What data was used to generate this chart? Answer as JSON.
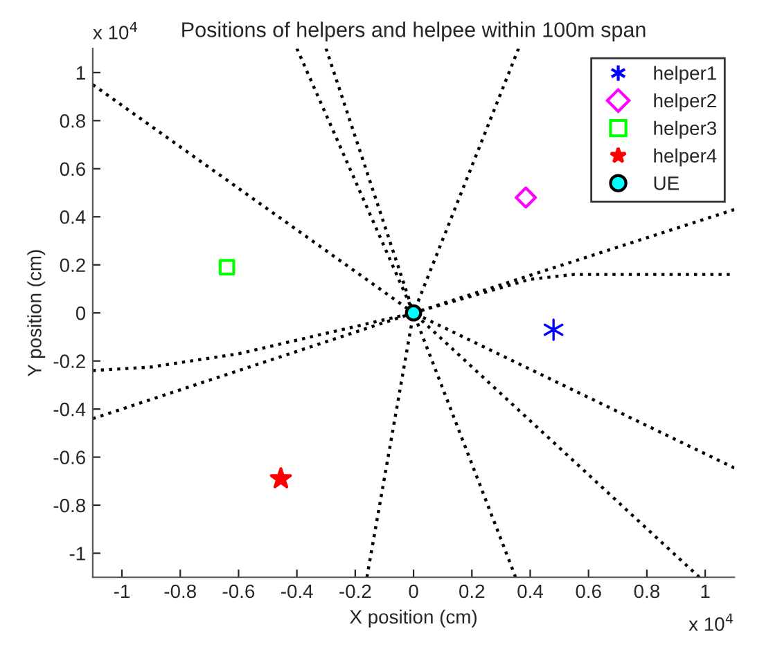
{
  "chart_data": {
    "type": "scatter",
    "title": "Positions of helpers and helpee within 100m span",
    "xlabel": "X position (cm)",
    "ylabel": "Y position (cm)",
    "annotations": [
      "x 10$^{4}$",
      "x 10$^{4}$"
    ],
    "xlim": [
      -1.1,
      1.1
    ],
    "ylim": [
      -1.1,
      1.1
    ],
    "xticks": [
      -1,
      -0.8,
      -0.6,
      -0.4,
      -0.2,
      0,
      0.2,
      0.4,
      0.6,
      0.8,
      1
    ],
    "yticks": [
      -1,
      -0.8,
      -0.6,
      -0.4,
      -0.2,
      0,
      0.2,
      0.4,
      0.6,
      0.8,
      1
    ],
    "grid": false,
    "legend": "top right",
    "series": [
      {
        "type": "line",
        "color": "#000000",
        "line_style": "dotted",
        "marker": "none",
        "x": [
          -1.1,
          0
        ],
        "values": [
          0.95,
          0
        ]
      },
      {
        "type": "line",
        "color": "#000000",
        "line_style": "dotted",
        "marker": "none",
        "x": [
          -0.4,
          0
        ],
        "values": [
          1.1,
          0
        ]
      },
      {
        "type": "line",
        "color": "#000000",
        "line_style": "dotted",
        "marker": "none",
        "x": [
          -0.3,
          0
        ],
        "values": [
          1.1,
          0
        ]
      },
      {
        "type": "line",
        "color": "#000000",
        "line_style": "dotted",
        "marker": "none",
        "x": [
          0.36,
          0
        ],
        "values": [
          1.1,
          0
        ]
      },
      {
        "type": "line",
        "color": "#000000",
        "line_style": "dotted",
        "marker": "none",
        "x": [
          1.1,
          0
        ],
        "values": [
          0.43,
          0
        ]
      },
      {
        "type": "line",
        "color": "#000000",
        "line_style": "dotted",
        "marker": "none",
        "x": [
          0,
          0.4,
          0.55,
          1.1
        ],
        "values": [
          0,
          0.14,
          0.16,
          0.16
        ]
      },
      {
        "type": "line",
        "color": "#000000",
        "line_style": "dotted",
        "marker": "none",
        "x": [
          -1.1,
          -0.9,
          -0.6,
          0
        ],
        "values": [
          -0.24,
          -0.225,
          -0.17,
          0
        ]
      },
      {
        "type": "line",
        "color": "#000000",
        "line_style": "dotted",
        "marker": "none",
        "x": [
          -1.1,
          0
        ],
        "values": [
          -0.44,
          0
        ]
      },
      {
        "type": "line",
        "color": "#000000",
        "line_style": "dotted",
        "marker": "none",
        "x": [
          -0.16,
          0
        ],
        "values": [
          -1.1,
          0
        ]
      },
      {
        "type": "line",
        "color": "#000000",
        "line_style": "dotted",
        "marker": "none",
        "x": [
          0.35,
          0
        ],
        "values": [
          -1.1,
          0
        ]
      },
      {
        "type": "line",
        "color": "#000000",
        "line_style": "dotted",
        "marker": "none",
        "x": [
          0.98,
          0
        ],
        "values": [
          -1.1,
          0
        ]
      },
      {
        "type": "line",
        "color": "#000000",
        "line_style": "dotted",
        "marker": "none",
        "x": [
          1.1,
          0
        ],
        "values": [
          -0.645,
          0
        ]
      },
      {
        "name": "helper1",
        "color": "#0000ff",
        "marker": "cross",
        "x": [
          0.48
        ],
        "values": [
          -0.07
        ]
      },
      {
        "name": "helper2",
        "color": "#ff00ff",
        "marker": "diamond",
        "x": [
          0.385
        ],
        "values": [
          0.48
        ]
      },
      {
        "name": "helper3",
        "color": "#00ff00",
        "marker": "square",
        "x": [
          -0.64
        ],
        "values": [
          0.19
        ]
      },
      {
        "name": "helper4",
        "color": "#ff0000",
        "marker": "star",
        "x": [
          -0.455
        ],
        "values": [
          -0.69
        ]
      },
      {
        "name": "UE",
        "color": "#00ffff",
        "marker": "circle",
        "x": [
          0
        ],
        "values": [
          0
        ]
      }
    ]
  }
}
